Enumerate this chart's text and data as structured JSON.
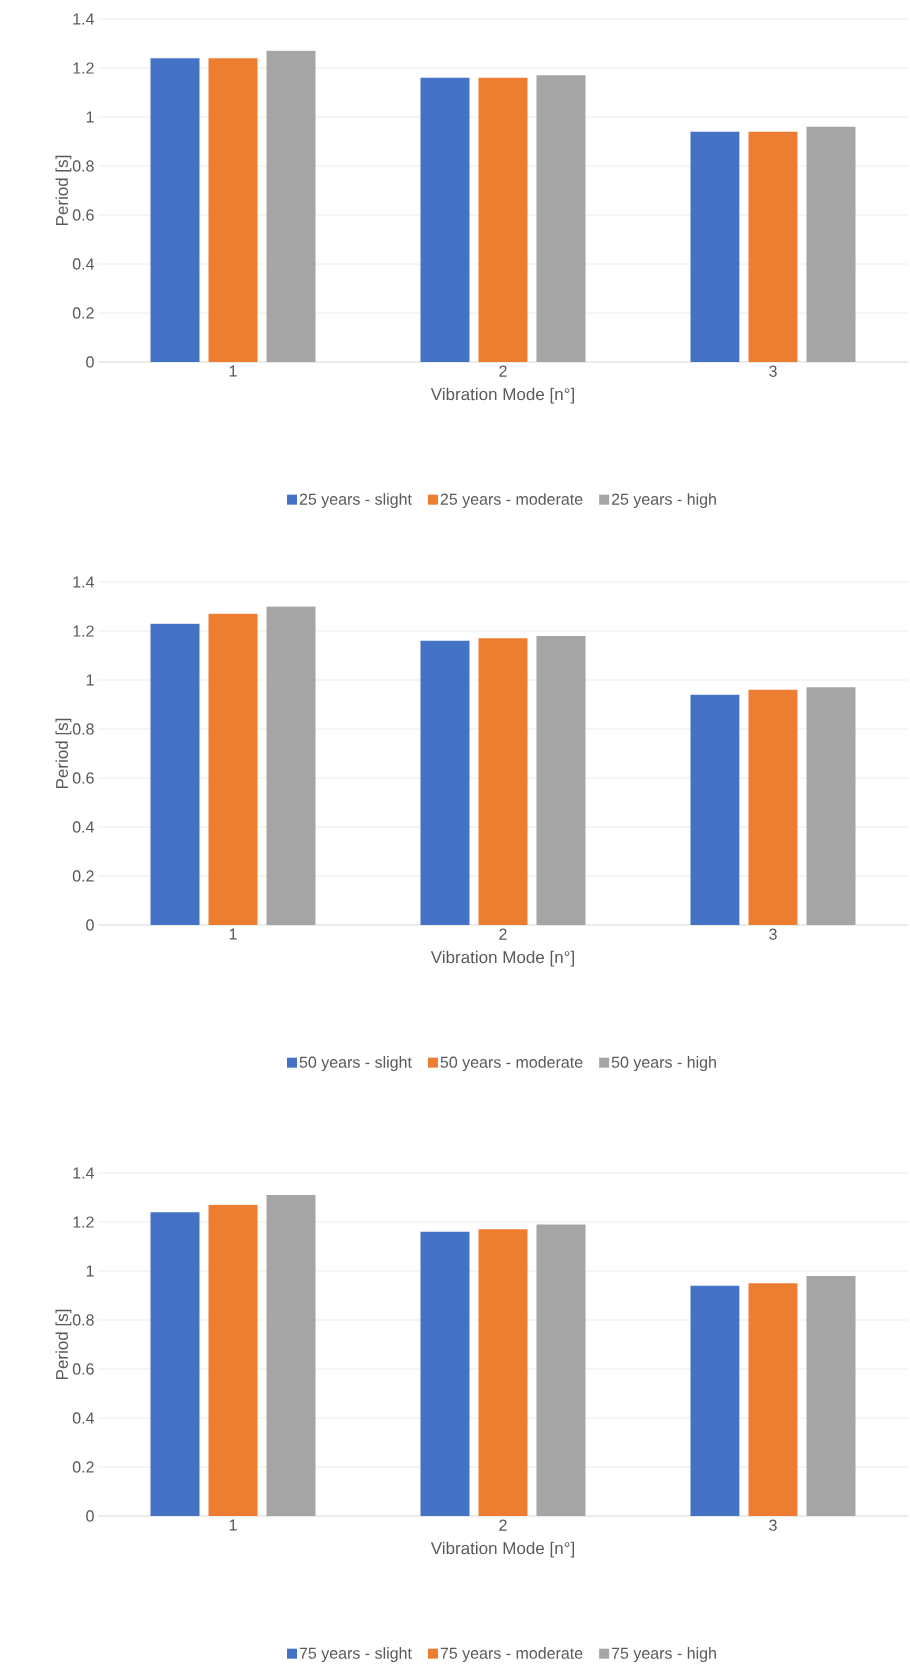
{
  "chart_data": [
    {
      "type": "bar",
      "xlabel": "Vibration Mode [n°]",
      "ylabel": "Period [s]",
      "categories": [
        "1",
        "2",
        "3"
      ],
      "ylim": [
        0,
        1.4
      ],
      "yticks": [
        0,
        0.2,
        0.4,
        0.6,
        0.8,
        1,
        1.2,
        1.4
      ],
      "grid": "y",
      "legend": "bottom",
      "series": [
        {
          "name": "25 years - slight",
          "color": "#4472c4",
          "values": [
            1.24,
            1.16,
            0.94
          ]
        },
        {
          "name": "25 years - moderate",
          "color": "#ed7d31",
          "values": [
            1.24,
            1.16,
            0.94
          ]
        },
        {
          "name": "25 years - high",
          "color": "#a5a5a5",
          "values": [
            1.27,
            1.17,
            0.96
          ]
        }
      ]
    },
    {
      "type": "bar",
      "xlabel": "Vibration Mode [n°]",
      "ylabel": "Period [s]",
      "categories": [
        "1",
        "2",
        "3"
      ],
      "ylim": [
        0,
        1.4
      ],
      "yticks": [
        0,
        0.2,
        0.4,
        0.6,
        0.8,
        1,
        1.2,
        1.4
      ],
      "grid": "y",
      "legend": "bottom",
      "series": [
        {
          "name": "50 years - slight",
          "color": "#4472c4",
          "values": [
            1.23,
            1.16,
            0.94
          ]
        },
        {
          "name": "50 years - moderate",
          "color": "#ed7d31",
          "values": [
            1.27,
            1.17,
            0.96
          ]
        },
        {
          "name": "50 years - high",
          "color": "#a5a5a5",
          "values": [
            1.3,
            1.18,
            0.97
          ]
        }
      ]
    },
    {
      "type": "bar",
      "xlabel": "Vibration Mode [n°]",
      "ylabel": "Period [s]",
      "categories": [
        "1",
        "2",
        "3"
      ],
      "ylim": [
        0,
        1.4
      ],
      "yticks": [
        0,
        0.2,
        0.4,
        0.6,
        0.8,
        1,
        1.2,
        1.4
      ],
      "grid": "y",
      "legend": "bottom",
      "series": [
        {
          "name": "75 years - slight",
          "color": "#4472c4",
          "values": [
            1.24,
            1.16,
            0.94
          ]
        },
        {
          "name": "75 years - moderate",
          "color": "#ed7d31",
          "values": [
            1.27,
            1.17,
            0.95
          ]
        },
        {
          "name": "75 years - high",
          "color": "#a5a5a5",
          "values": [
            1.31,
            1.19,
            0.98
          ]
        }
      ]
    }
  ]
}
